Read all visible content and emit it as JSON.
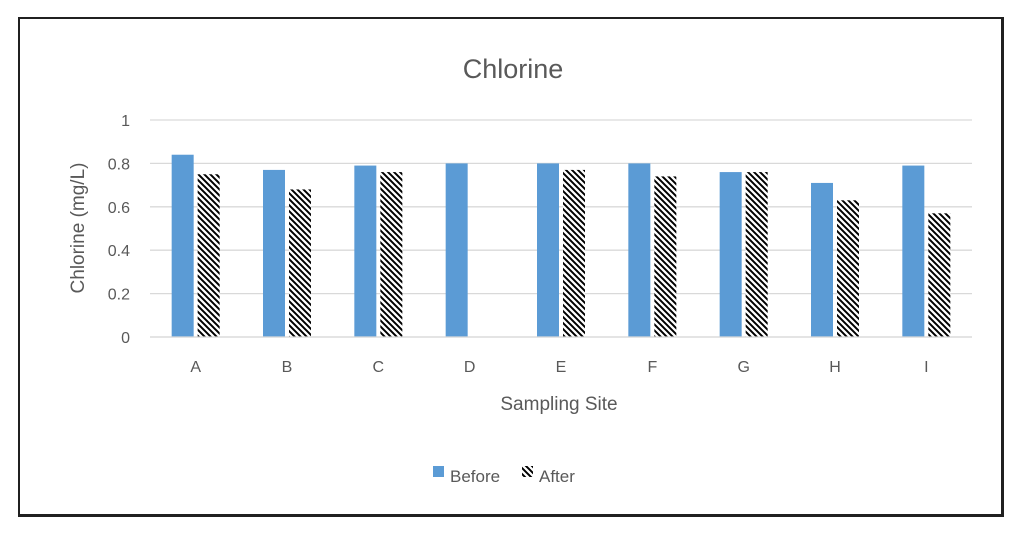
{
  "chart_data": {
    "type": "bar",
    "title": "Chlorine",
    "xlabel": "Sampling Site",
    "ylabel": "Chlorine  (mg/L)",
    "categories": [
      "A",
      "B",
      "C",
      "D",
      "E",
      "F",
      "G",
      "H",
      "I"
    ],
    "series": [
      {
        "name": "Before",
        "values": [
          0.84,
          0.77,
          0.79,
          0.8,
          0.8,
          0.8,
          0.76,
          0.71,
          0.79
        ],
        "color": "#5b9bd5",
        "fill": "solid"
      },
      {
        "name": "After",
        "values": [
          0.75,
          0.68,
          0.76,
          0,
          0.77,
          0.74,
          0.76,
          0.63,
          0.57
        ],
        "color": "#000000",
        "fill": "diagonal-hatch"
      }
    ],
    "ylim": [
      0,
      1
    ],
    "yticks": [
      "0",
      "0.2",
      "0.4",
      "0.6",
      "0.8",
      "1"
    ],
    "ytick_values": [
      0,
      0.2,
      0.4,
      0.6,
      0.8,
      1
    ],
    "grid": true,
    "legend_position": "bottom"
  }
}
